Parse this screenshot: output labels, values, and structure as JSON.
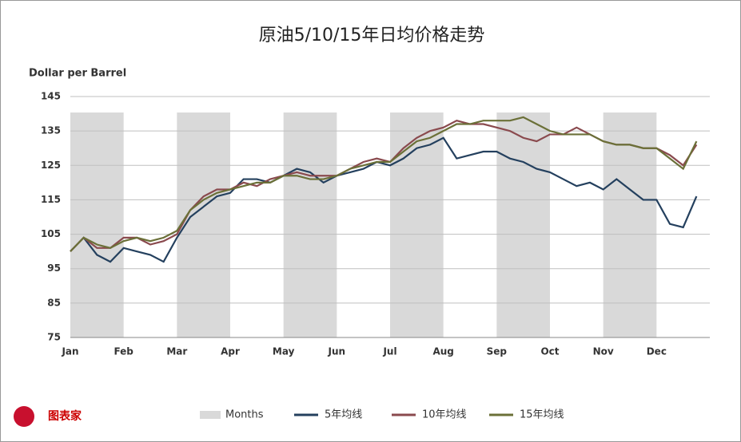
{
  "chart_data": {
    "type": "line",
    "title": "原油5/10/15年日均价格走势",
    "y_label": "Dollar per Barrel",
    "categories": [
      "Jan",
      null,
      null,
      null,
      "Feb",
      null,
      null,
      null,
      "Mar",
      null,
      null,
      null,
      "Apr",
      null,
      null,
      null,
      "May",
      null,
      null,
      null,
      "Jun",
      null,
      null,
      null,
      "Jul",
      null,
      null,
      null,
      "Aug",
      null,
      null,
      null,
      "Sep",
      null,
      null,
      null,
      "Oct",
      null,
      null,
      null,
      "Nov",
      null,
      null,
      null,
      "Dec",
      null,
      null,
      null
    ],
    "shading_label": "Months",
    "shading_color": "#d9d9d9",
    "series": [
      {
        "name": "5年均线",
        "color": "#24405e",
        "values": [
          100,
          104,
          99,
          97,
          101,
          100,
          99,
          97,
          104,
          110,
          113,
          116,
          117,
          121,
          121,
          120,
          122,
          124,
          123,
          120,
          122,
          123,
          124,
          126,
          125,
          127,
          130,
          131,
          133,
          127,
          128,
          129,
          129,
          127,
          126,
          124,
          123,
          121,
          119,
          120,
          118,
          121,
          118,
          115,
          115,
          108,
          107,
          116
        ]
      },
      {
        "name": "10年均线",
        "color": "#8a4a4e",
        "values": [
          100,
          104,
          101,
          101,
          104,
          104,
          102,
          103,
          105,
          112,
          116,
          118,
          118,
          120,
          119,
          121,
          122,
          123,
          122,
          122,
          122,
          124,
          126,
          127,
          126,
          130,
          133,
          135,
          136,
          138,
          137,
          137,
          136,
          135,
          133,
          132,
          134,
          134,
          136,
          134,
          132,
          131,
          131,
          130,
          130,
          128,
          125,
          131
        ]
      },
      {
        "name": "15年均线",
        "color": "#6b7038",
        "values": [
          100,
          104,
          102,
          101,
          103,
          104,
          103,
          104,
          106,
          112,
          115,
          117,
          118,
          119,
          120,
          120,
          122,
          122,
          121,
          121,
          122,
          124,
          125,
          126,
          126,
          129,
          132,
          133,
          135,
          137,
          137,
          138,
          138,
          138,
          139,
          137,
          135,
          134,
          134,
          134,
          132,
          131,
          131,
          130,
          130,
          127,
          124,
          132
        ]
      }
    ],
    "ylim": [
      75,
      145
    ],
    "yticks": [
      75,
      85,
      95,
      105,
      115,
      125,
      135,
      145
    ],
    "grid": true
  },
  "logo": {
    "text": "图表家"
  }
}
